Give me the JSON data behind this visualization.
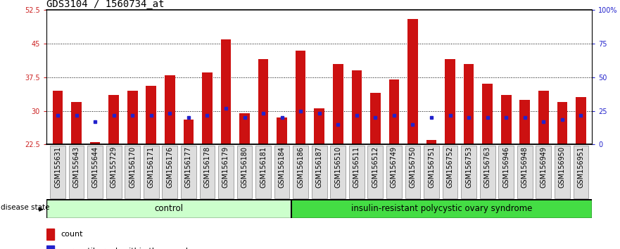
{
  "title": "GDS3104 / 1560734_at",
  "samples": [
    "GSM155631",
    "GSM155643",
    "GSM155644",
    "GSM155729",
    "GSM156170",
    "GSM156171",
    "GSM156176",
    "GSM156177",
    "GSM156178",
    "GSM156179",
    "GSM156180",
    "GSM156181",
    "GSM156184",
    "GSM156186",
    "GSM156187",
    "GSM156510",
    "GSM156511",
    "GSM156512",
    "GSM156749",
    "GSM156750",
    "GSM156751",
    "GSM156752",
    "GSM156753",
    "GSM156763",
    "GSM156946",
    "GSM156948",
    "GSM156949",
    "GSM156950",
    "GSM156951"
  ],
  "count_values": [
    34.5,
    32.0,
    23.0,
    33.5,
    34.5,
    35.5,
    38.0,
    28.0,
    38.5,
    46.0,
    29.5,
    41.5,
    28.5,
    43.5,
    30.5,
    40.5,
    39.0,
    34.0,
    37.0,
    50.5,
    23.5,
    41.5,
    40.5,
    36.0,
    33.5,
    32.5,
    34.5,
    32.0,
    33.0
  ],
  "percentile_values": [
    29.0,
    29.0,
    27.5,
    29.0,
    29.0,
    29.0,
    29.5,
    28.5,
    29.0,
    30.5,
    28.5,
    29.5,
    28.5,
    30.0,
    29.5,
    27.0,
    29.0,
    28.5,
    29.0,
    27.0,
    28.5,
    29.0,
    28.5,
    28.5,
    28.5,
    28.5,
    27.5,
    28.0,
    29.0
  ],
  "group_control_count": 13,
  "group_disease_count": 16,
  "group_labels": [
    "control",
    "insulin-resistant polycystic ovary syndrome"
  ],
  "group_color_control": "#ccffcc",
  "group_color_disease": "#44dd44",
  "ymin": 22.5,
  "ymax": 52.5,
  "yticks": [
    22.5,
    30,
    37.5,
    45,
    52.5
  ],
  "ytick_labels": [
    "22.5",
    "30",
    "37.5",
    "45",
    "52.5"
  ],
  "y2ticks": [
    0,
    25,
    50,
    75,
    100
  ],
  "y2tick_labels": [
    "0",
    "25",
    "50",
    "75",
    "100%"
  ],
  "bar_color": "#cc1111",
  "dot_color": "#2222cc",
  "bar_width": 0.55,
  "background_color": "#ffffff",
  "plot_bg_color": "#ffffff",
  "title_fontsize": 10,
  "tick_fontsize": 7,
  "label_fontsize": 8.5,
  "grid_yticks": [
    30,
    37.5,
    45
  ]
}
